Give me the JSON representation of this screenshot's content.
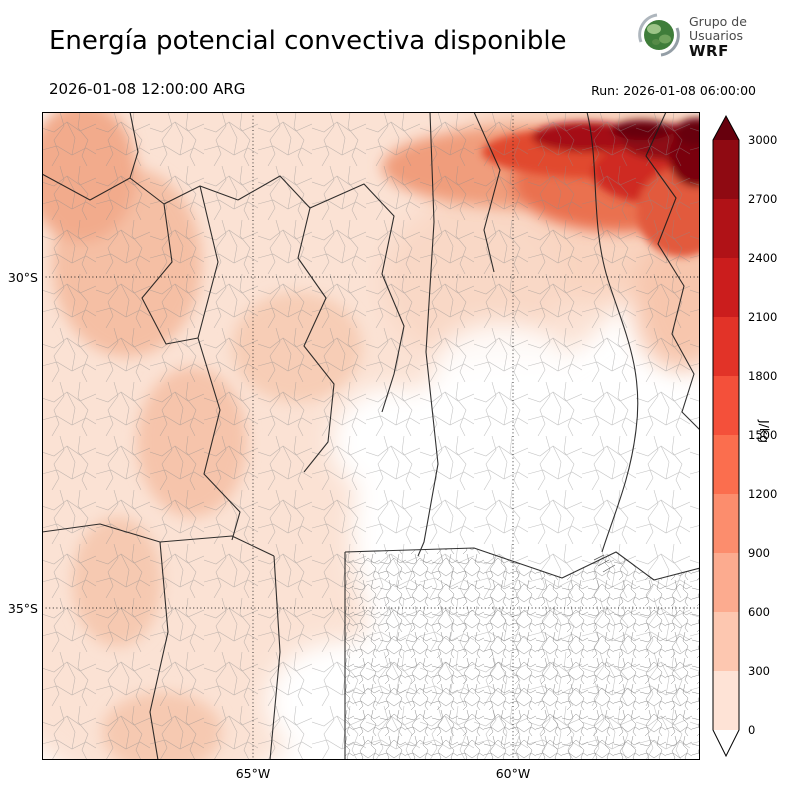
{
  "header": {
    "title": "Energía potencial convectiva disponible",
    "valid_time": "2026-01-08 12:00:00 ARG",
    "run_label": "Run: 2026-01-08 06:00:00",
    "logo": {
      "line1": "Grupo de",
      "line2": "Usuarios",
      "line3": "WRF"
    }
  },
  "axes": {
    "lat_ticks": [
      "30°S",
      "35°S"
    ],
    "lon_ticks": [
      "65°W",
      "60°W"
    ]
  },
  "colorbar": {
    "unit": "J/kg",
    "tick_labels": [
      "3000",
      "2700",
      "2400",
      "2100",
      "1800",
      "1500",
      "1200",
      "900",
      "600",
      "300",
      "0"
    ],
    "segment_colors_top_to_bottom": [
      "#8f0a12",
      "#b01217",
      "#cb1d1d",
      "#e23328",
      "#f4503a",
      "#fb6e4e",
      "#fc8d6d",
      "#fcab8f",
      "#fdc7b0",
      "#fee3d6"
    ],
    "over_color": "#67000d",
    "under_color": "#ffffff"
  },
  "chart_data": {
    "type": "heatmap",
    "title": "Energía potencial convectiva disponible",
    "units": "J/kg",
    "levels": [
      0,
      300,
      600,
      900,
      1200,
      1500,
      1800,
      2100,
      2400,
      2700,
      3000
    ],
    "colormap": "Reds",
    "lat_gridlines": [
      "30°S",
      "35°S"
    ],
    "lon_gridlines": [
      "65°W",
      "60°W"
    ],
    "notes": "CAPE filled contours over central/northern Argentina; light values (0-600) over the west, maximum band >2700-3000 along the northeastern top edge of the domain; white (near 0) over the southeast and Buenos Aires region"
  }
}
